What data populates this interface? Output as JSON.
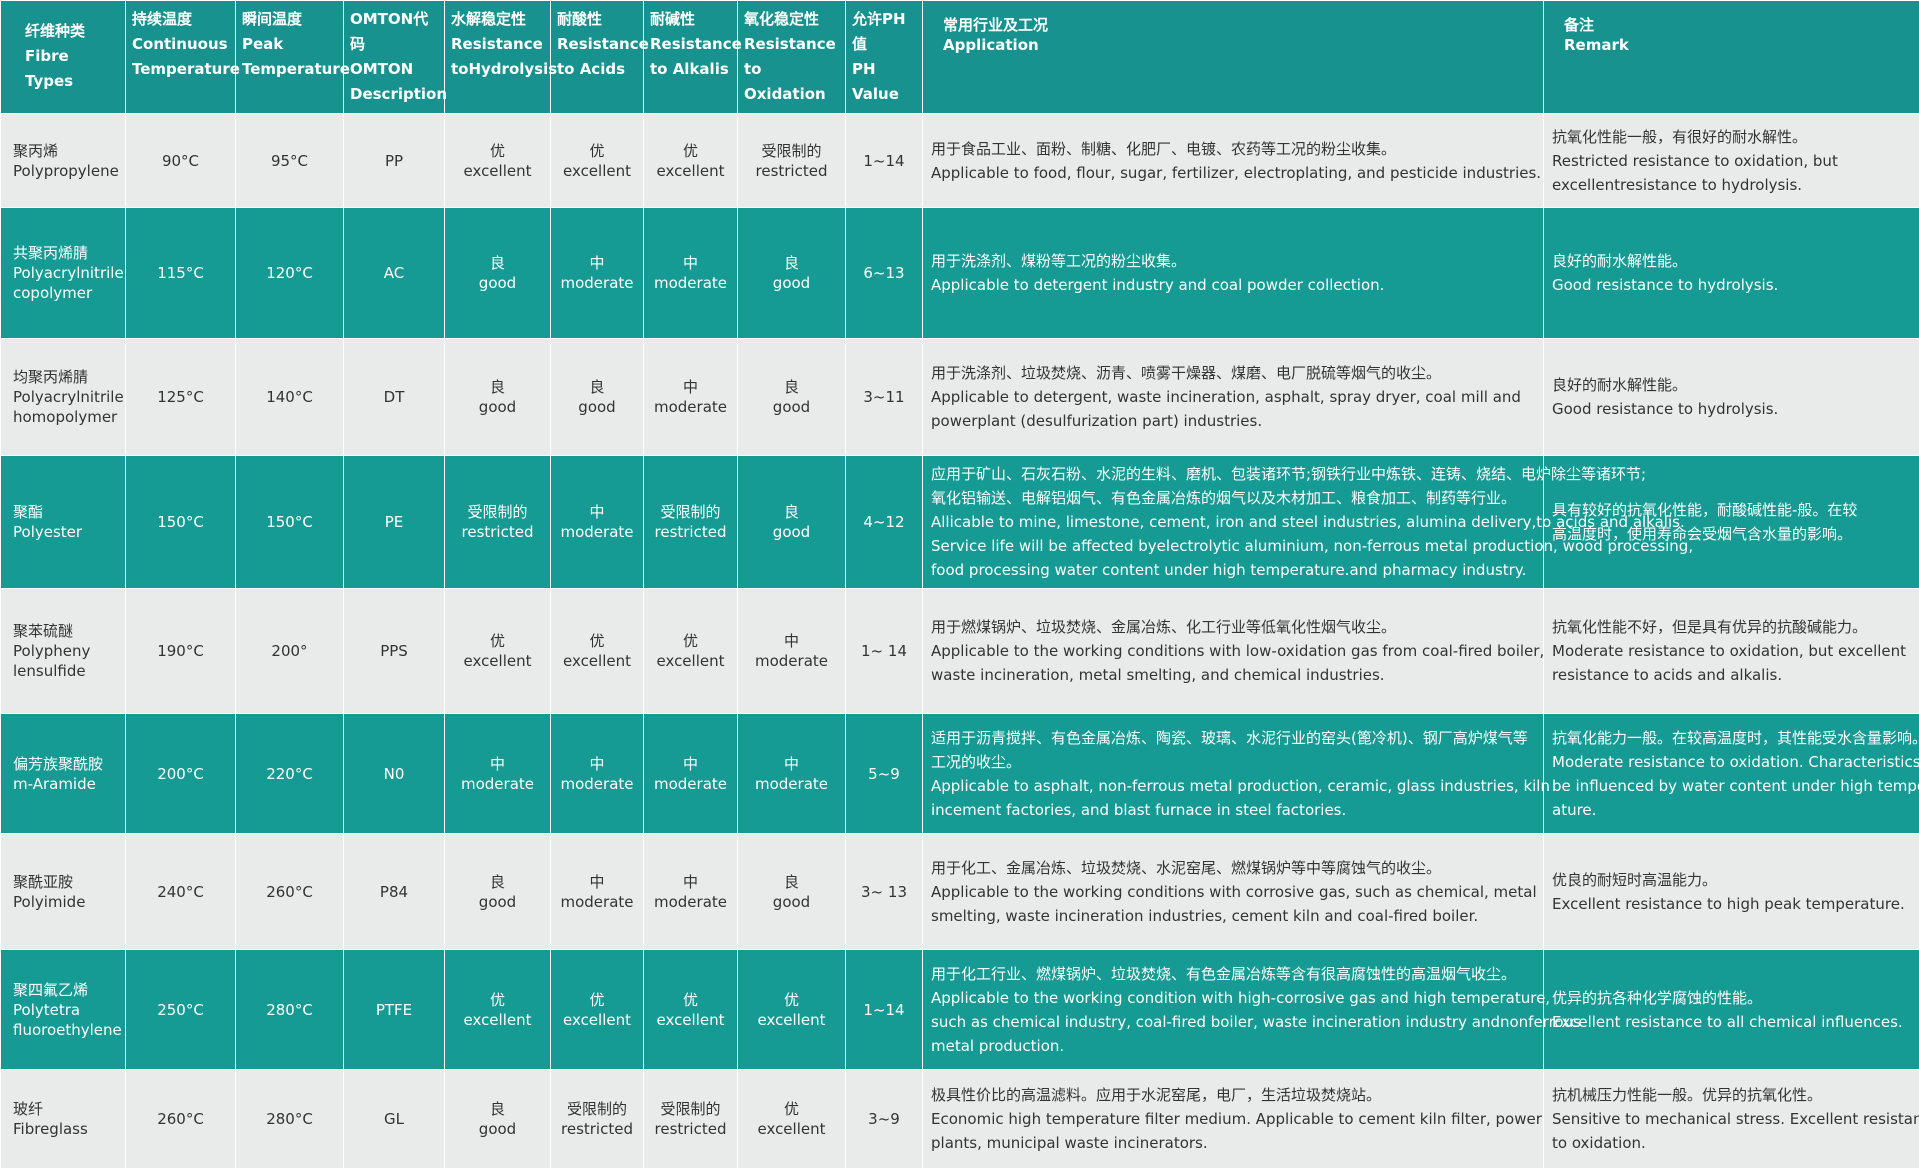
{
  "colors": {
    "header": "#17928f",
    "teal_row": "#169a94",
    "light_row": "#e9ebea"
  },
  "headers": [
    [
      "纤维种类",
      "Fibre Types"
    ],
    [
      "持续温度",
      "Continuous",
      "Temperature"
    ],
    [
      "瞬间温度",
      "Peak",
      "Temperature"
    ],
    [
      "OMTON代码",
      "OMTON",
      "Description"
    ],
    [
      "水解稳定性",
      "Resistance",
      "toHydrolysis"
    ],
    [
      "耐酸性",
      "Resistance",
      "to Acids"
    ],
    [
      "耐碱性",
      "Resistance",
      "to Alkalis"
    ],
    [
      "氧化稳定性",
      "Resistance",
      "to Oxidation"
    ],
    [
      "允许PH值",
      "PH",
      "Value"
    ],
    [
      "常用行业及工况",
      "Application"
    ],
    [
      "备注",
      "Remark"
    ]
  ],
  "rows": [
    {
      "fibre": [
        "聚丙烯",
        "Polypropylene"
      ],
      "cont": "90°C",
      "peak": "95°C",
      "code": "PP",
      "hyd": [
        "优",
        "excellent"
      ],
      "acid": [
        "优",
        "excellent"
      ],
      "alk": [
        "优",
        "excellent"
      ],
      "oxi": [
        "受限制的",
        "restricted"
      ],
      "ph": "1~14",
      "app": [
        "用于食品工业、面粉、制糖、化肥厂、电镀、农药等工况的粉尘收集。",
        "Applicable to food, flour, sugar, fertilizer, electroplating, and pesticide industries."
      ],
      "remark": [
        "抗氧化性能一般，有很好的耐水解性。",
        "Restricted resistance to oxidation, but",
        "excellentresistance to hydrolysis."
      ]
    },
    {
      "fibre": [
        "共聚丙烯腈",
        "Polyacrylnitrile",
        "copolymer"
      ],
      "cont": "115°C",
      "peak": "120°C",
      "code": "AC",
      "hyd": [
        "良",
        "good"
      ],
      "acid": [
        "中",
        "moderate"
      ],
      "alk": [
        "中",
        "moderate"
      ],
      "oxi": [
        "良",
        "good"
      ],
      "ph": "6~13",
      "app": [
        "用于洗涤剂、煤粉等工况的粉尘收集。",
        "Applicable to detergent industry and coal powder collection."
      ],
      "remark": [
        "良好的耐水解性能。",
        "Good resistance to hydrolysis."
      ]
    },
    {
      "fibre": [
        "均聚丙烯腈",
        "Polyacrylnitrile",
        "homopolymer"
      ],
      "cont": "125°C",
      "peak": "140°C",
      "code": "DT",
      "hyd": [
        "良",
        "good"
      ],
      "acid": [
        "良",
        "good"
      ],
      "alk": [
        "中",
        "moderate"
      ],
      "oxi": [
        "良",
        "good"
      ],
      "ph": "3~11",
      "app": [
        "用于洗涤剂、垃圾焚烧、沥青、喷雾干燥器、煤磨、电厂脱硫等烟气的收尘。",
        "Applicable to detergent, waste incineration, asphalt, spray dryer, coal mill and",
        "powerplant (desulfurization part) industries."
      ],
      "remark": [
        "良好的耐水解性能。",
        "Good resistance to hydrolysis."
      ]
    },
    {
      "fibre": [
        "聚酯",
        "Polyester"
      ],
      "cont": "150°C",
      "peak": "150°C",
      "code": "PE",
      "hyd": [
        "受限制的",
        "restricted"
      ],
      "acid": [
        "中",
        "moderate"
      ],
      "alk": [
        "受限制的",
        "restricted"
      ],
      "oxi": [
        "良",
        "good"
      ],
      "ph": "4~12",
      "app": [
        "应用于矿山、石灰石粉、水泥的生料、磨机、包装诸环节;钢铁行业中炼铁、连铸、烧结、电炉除尘等诸环节;",
        "氧化铝输送、电解铝烟气、有色金属冶炼的烟气以及木材加工、粮食加工、制药等行业。",
        "Allicable to mine, limestone, cement, iron and steel industries, alumina delivery,to acids and alkalis.",
        "Service life will be affected byelectrolytic aluminium, non-ferrous metal production, wood processing,",
        "food processing water content under high temperature.and pharmacy industry."
      ],
      "remark": [
        "具有较好的抗氧化性能，耐酸碱性能-般。在较",
        "高温度时，使用寿命会受烟气含水量的影响。"
      ]
    },
    {
      "fibre": [
        "聚苯硫醚",
        "Polypheny",
        "lensulfide"
      ],
      "cont": "190°C",
      "peak": "200°",
      "code": "PPS",
      "hyd": [
        "优",
        "excellent"
      ],
      "acid": [
        "优",
        "excellent"
      ],
      "alk": [
        "优",
        "excellent"
      ],
      "oxi": [
        "中",
        "moderate"
      ],
      "ph": "1~ 14",
      "app": [
        "用于燃煤锅炉、垃圾焚烧、金属冶炼、化工行业等低氧化性烟气收尘。",
        "Applicable to the working conditions with low-oxidation gas from coal-fired boiler,",
        "waste incineration, metal smelting, and chemical industries."
      ],
      "remark": [
        "抗氧化性能不好，但是具有优异的抗酸碱能力。",
        "Moderate resistance to oxidation, but excellent",
        "resistance to acids and alkalis."
      ]
    },
    {
      "fibre": [
        "偏芳族聚酰胺",
        "m-Aramide"
      ],
      "cont": "200°C",
      "peak": "220°C",
      "code": "N0",
      "hyd": [
        "中",
        "moderate"
      ],
      "acid": [
        "中",
        "moderate"
      ],
      "alk": [
        "中",
        "moderate"
      ],
      "oxi": [
        "中",
        "moderate"
      ],
      "ph": "5~9",
      "app": [
        "适用于沥青搅拌、有色金属冶炼、陶瓷、玻璃、水泥行业的窑头(篦冷机)、钢厂高炉煤气等",
        "工况的收尘。",
        "Applicable to asphalt, non-ferrous metal production, ceramic, glass industries, kiln",
        "incement  factories, and blast furnace in steel factories."
      ],
      "remark": [
        "抗氧化能力一般。在较高温度时，其性能受水含量影响。",
        "Moderate resistance to oxidation. Characteristicswill",
        "be influenced by water content under high temper-",
        "ature."
      ]
    },
    {
      "fibre": [
        "聚酰亚胺",
        "Polyimide"
      ],
      "cont": "240°C",
      "peak": "260°C",
      "code": "P84",
      "hyd": [
        "良",
        "good"
      ],
      "acid": [
        "中",
        "moderate"
      ],
      "alk": [
        "中",
        "moderate"
      ],
      "oxi": [
        "良",
        "good"
      ],
      "ph": "3~ 13",
      "app": [
        "用于化工、金属冶炼、垃圾焚烧、水泥窑尾、燃煤锅炉等中等腐蚀气的收尘。",
        "Applicable to the working conditions with corrosive gas, such as chemical, metal",
        "smelting, waste incineration industries, cement kiln and coal-fired boiler."
      ],
      "remark": [
        "优良的耐短时高温能力。",
        "Excellent resistance to high peak temperature."
      ]
    },
    {
      "fibre": [
        "聚四氟乙烯",
        "Polytetra",
        "fluoroethylene"
      ],
      "cont": "250°C",
      "peak": "280°C",
      "code": "PTFE",
      "hyd": [
        "优",
        "excellent"
      ],
      "acid": [
        "优",
        "excellent"
      ],
      "alk": [
        "优",
        "excellent"
      ],
      "oxi": [
        "优",
        "excellent"
      ],
      "ph": "1~14",
      "app": [
        "用于化工行业、燃煤锅炉、垃圾焚烧、有色金属冶炼等含有很高腐蚀性的高温烟气收尘。",
        "Applicable to the working condition with high-corrosive gas and high temperature,",
        "such as chemical industry, coal-fired boiler, waste incineration industry andnonferrous",
        "metal production."
      ],
      "remark": [
        "优异的抗各种化学腐蚀的性能。",
        "Excellent resistance to all chemical influences."
      ]
    },
    {
      "fibre": [
        "玻纤",
        "Fibreglass"
      ],
      "cont": "260°C",
      "peak": "280°C",
      "code": "GL",
      "hyd": [
        "良",
        "good"
      ],
      "acid": [
        "受限制的",
        "restricted"
      ],
      "alk": [
        "受限制的",
        "restricted"
      ],
      "oxi": [
        "优",
        "excellent"
      ],
      "ph": "3~9",
      "app": [
        "极具性价比的高温滤料。应用于水泥窑尾，电厂，生活垃圾焚烧站。",
        "Economic high temperature filter medium. Applicable to cement kiln filter, power",
        "plants, municipal waste incinerators."
      ],
      "remark": [
        "抗机械压力性能一般。优异的抗氧化性。",
        "Sensitive to mechanical stress. Excellent resistance",
        "to oxidation."
      ]
    }
  ]
}
